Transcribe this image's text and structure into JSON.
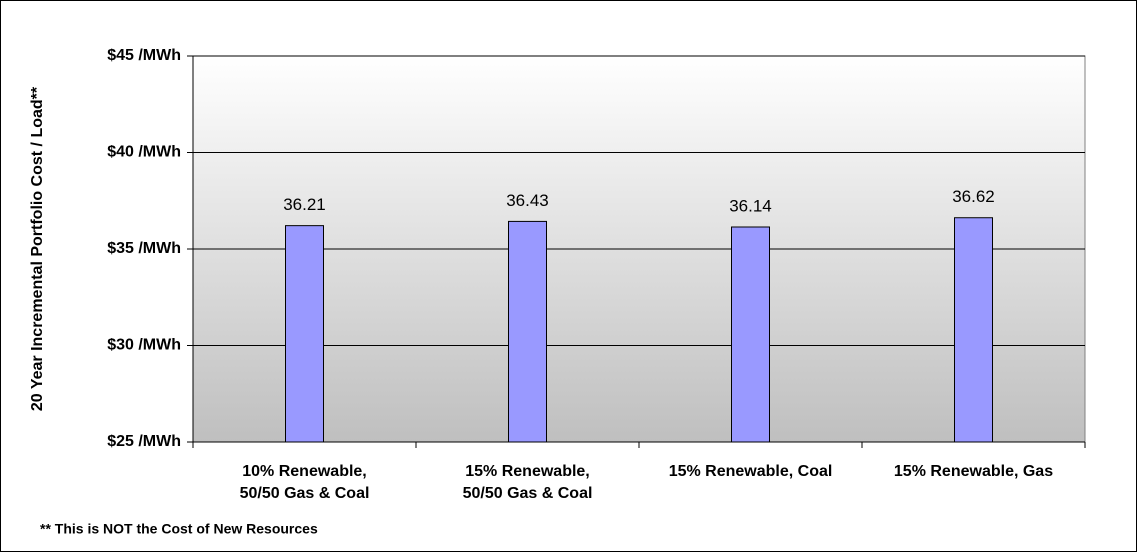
{
  "chart_data": {
    "type": "bar",
    "y_axis_label": "20 Year Incremental Portfolio Cost / Load**",
    "annotation": "** This is NOT the Cost of New Resources",
    "categories": [
      "10% Renewable,\n50/50 Gas & Coal",
      "15% Renewable,\n50/50 Gas & Coal",
      "15% Renewable, Coal",
      "15% Renewable, Gas"
    ],
    "values": [
      36.21,
      36.43,
      36.14,
      36.62
    ],
    "color": "#9999ff",
    "ylim": [
      25,
      45
    ],
    "yticks": [
      {
        "value": 25,
        "label": "$25 /MWh"
      },
      {
        "value": 30,
        "label": "$30 /MWh"
      },
      {
        "value": 35,
        "label": "$35 /MWh"
      },
      {
        "value": 40,
        "label": "$40 /MWh"
      },
      {
        "value": 45,
        "label": "$45 /MWh"
      }
    ],
    "grid": true
  }
}
